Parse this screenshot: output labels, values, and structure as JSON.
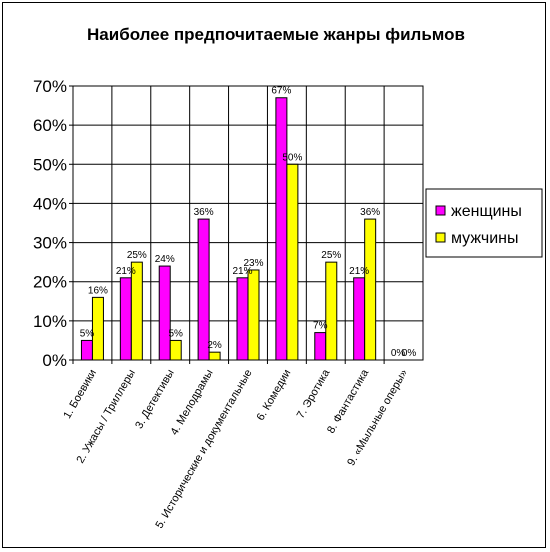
{
  "chart_data": {
    "type": "bar",
    "title": "Наиболее предпочитаемые жанры фильмов",
    "xlabel": "",
    "ylabel": "",
    "ylim": [
      0,
      70
    ],
    "yticks": [
      "0%",
      "10%",
      "20%",
      "30%",
      "40%",
      "50%",
      "60%",
      "70%"
    ],
    "grid": true,
    "legend_position": "right",
    "categories": [
      "1. Боевики",
      "2. Ужасы / Триллеры",
      "3. Детективы",
      "4. Мелодрамы",
      "5. Исторические и документальные",
      "6. Комедии",
      "7. Эротика",
      "8. Фантастика",
      "9. «Мыльные оперы»"
    ],
    "series": [
      {
        "name": "женщины",
        "color": "#ff00ff",
        "values": [
          5,
          21,
          24,
          36,
          21,
          67,
          7,
          21,
          0
        ],
        "labels": [
          "5%",
          "21%",
          "24%",
          "36%",
          "21%",
          "67%",
          "7%",
          "21%",
          "0%"
        ]
      },
      {
        "name": "мужчины",
        "color": "#ffff00",
        "values": [
          16,
          25,
          5,
          2,
          23,
          50,
          25,
          36,
          0
        ],
        "labels": [
          "16%",
          "25%",
          "5%",
          "2%",
          "23%",
          "50%",
          "25%",
          "36%",
          "0%"
        ]
      }
    ]
  }
}
